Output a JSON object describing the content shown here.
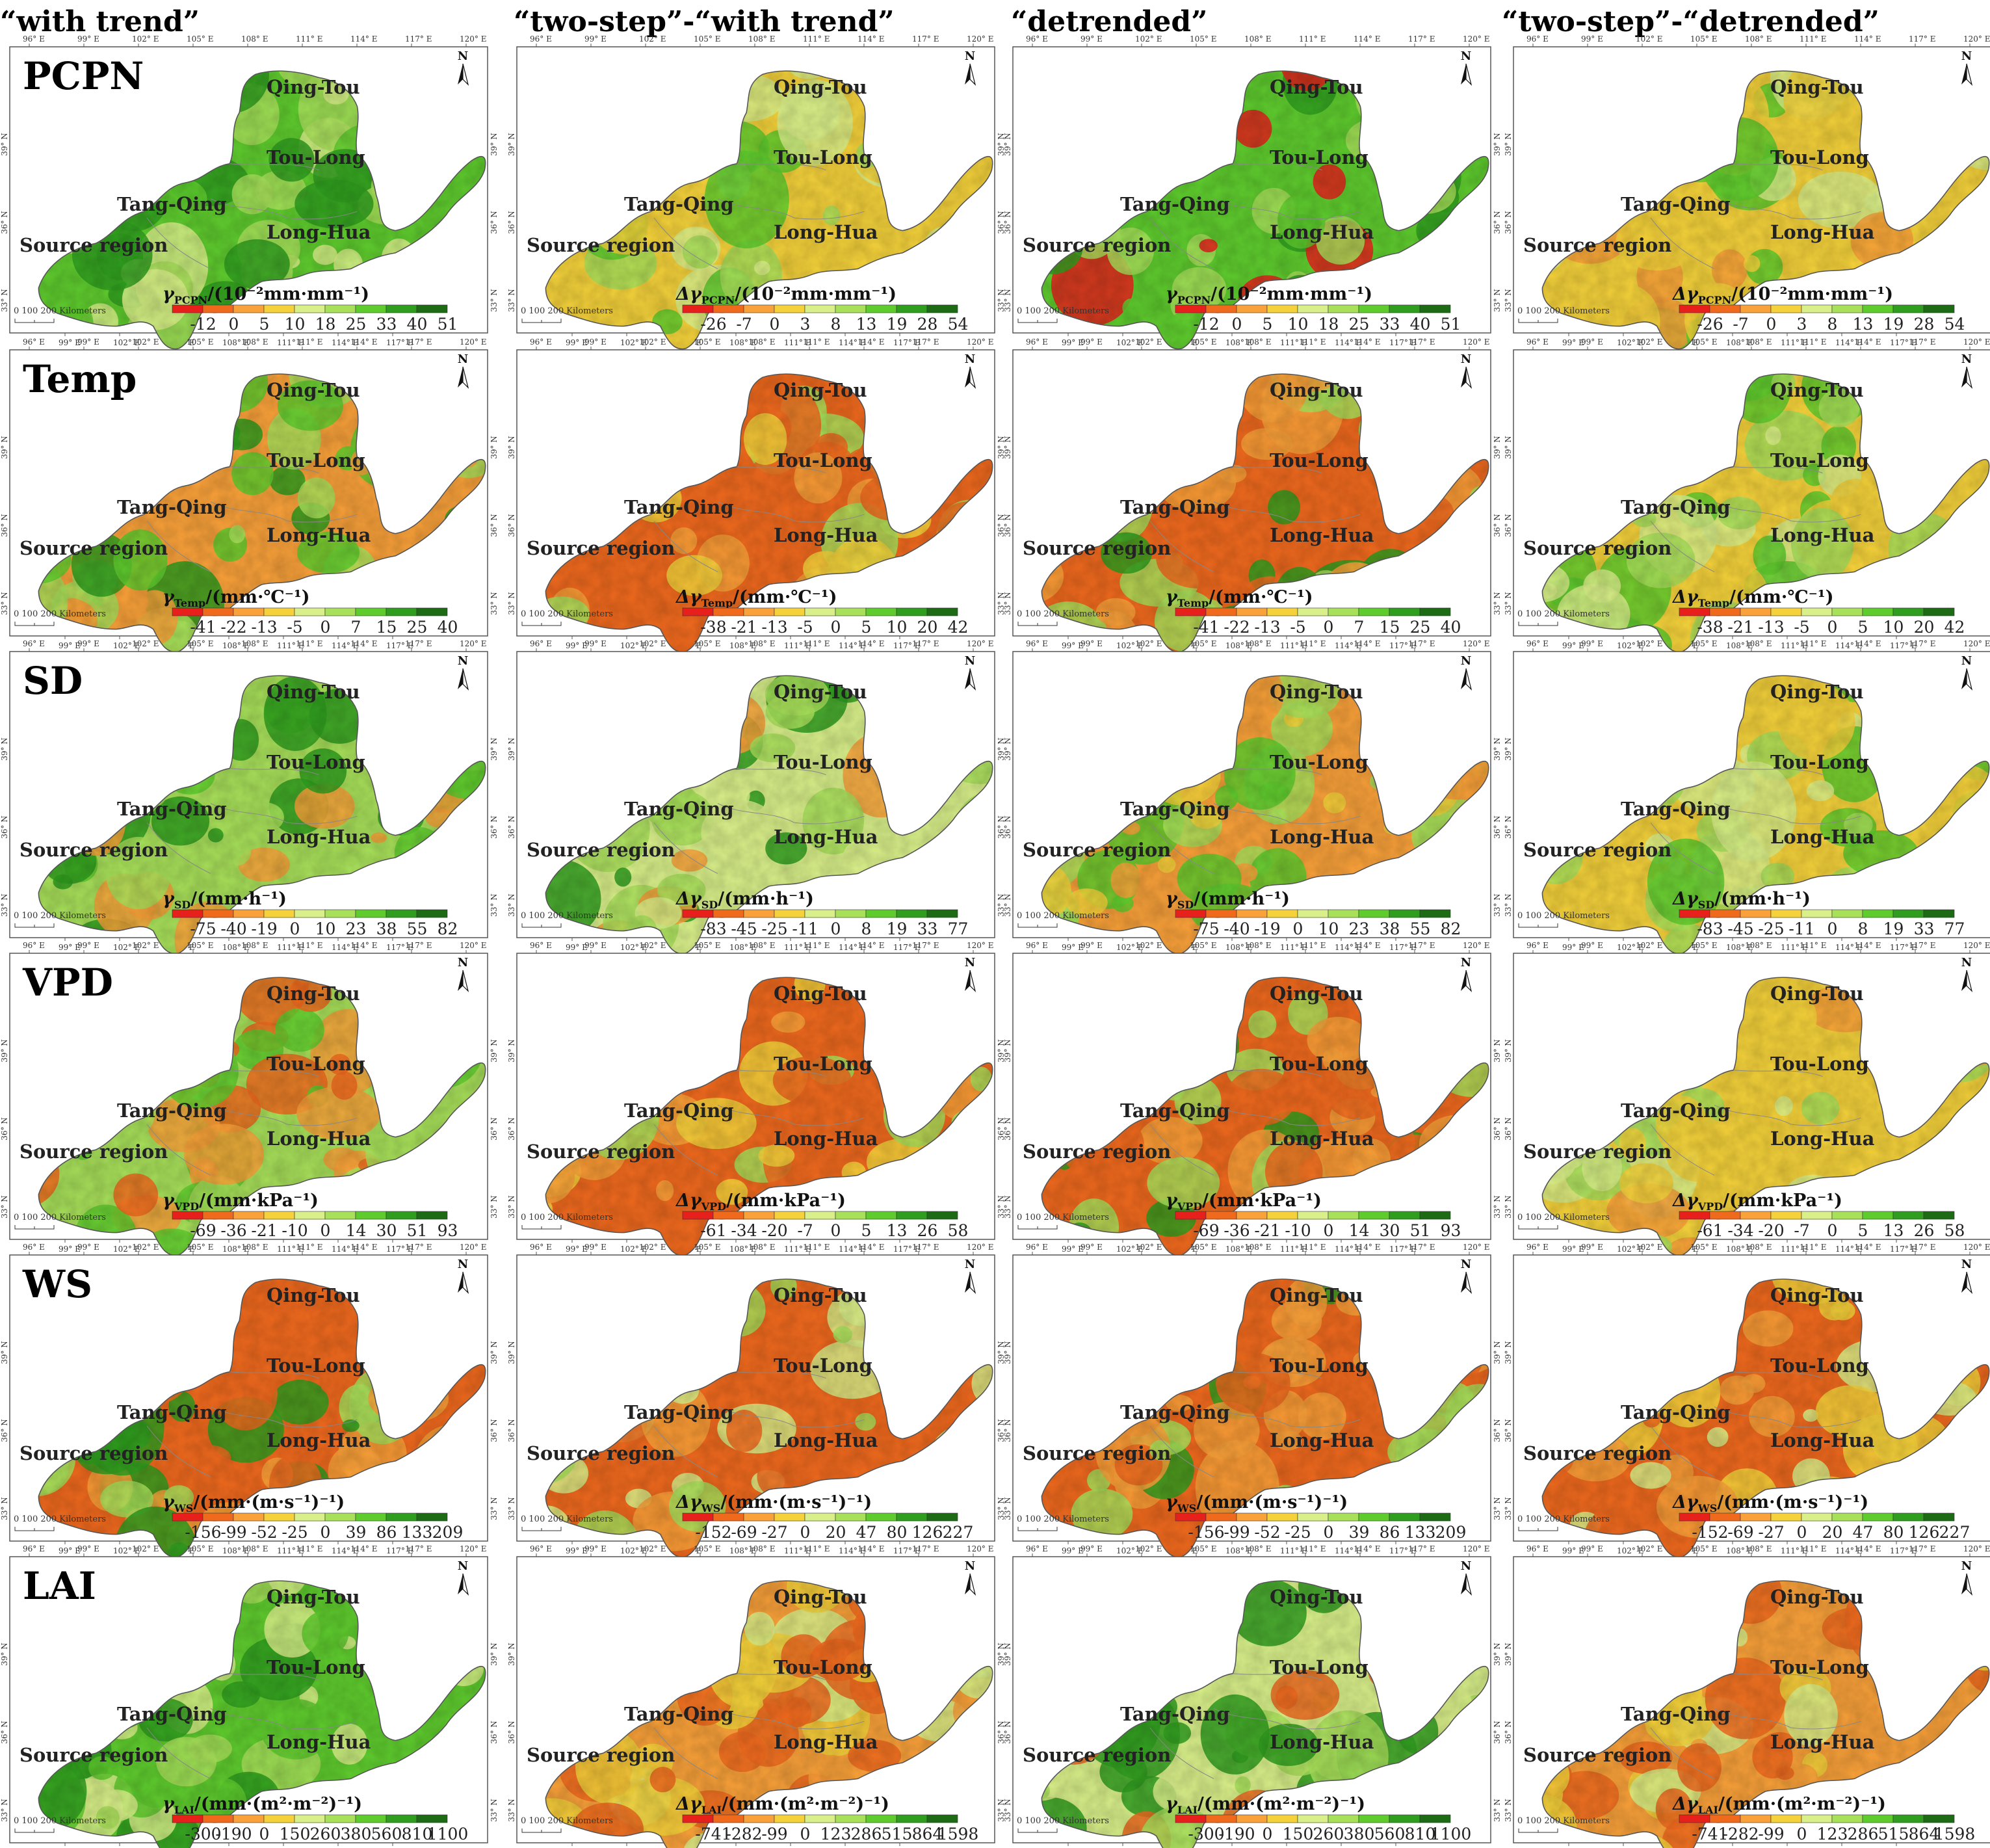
{
  "columns": [
    "“with trend”",
    "“two-step”-“with trend”",
    "“detrended”",
    "“two-step”-“detrended”"
  ],
  "rows": [
    {
      "label": "PCPN",
      "sub": "PCPN",
      "unit": "/(10⁻²mm·mm⁻¹)",
      "ticks_abs": [
        "-12",
        "0",
        "5",
        "10",
        "18",
        "25",
        "33",
        "40",
        "51"
      ],
      "ticks_diff": [
        "-26",
        "-7",
        "0",
        "3",
        "8",
        "13",
        "19",
        "28",
        "54"
      ]
    },
    {
      "label": "Temp",
      "sub": "Temp",
      "unit": "/(mm·℃⁻¹)",
      "ticks_abs": [
        "-41",
        "-22",
        "-13",
        "-5",
        "0",
        "7",
        "15",
        "25",
        "40"
      ],
      "ticks_diff": [
        "-38",
        "-21",
        "-13",
        "-5",
        "0",
        "5",
        "10",
        "20",
        "42"
      ]
    },
    {
      "label": "SD",
      "sub": "SD",
      "unit": "/(mm·h⁻¹)",
      "ticks_abs": [
        "-75",
        "-40",
        "-19",
        "0",
        "10",
        "23",
        "38",
        "55",
        "82"
      ],
      "ticks_diff": [
        "-83",
        "-45",
        "-25",
        "-11",
        "0",
        "8",
        "19",
        "33",
        "77"
      ]
    },
    {
      "label": "VPD",
      "sub": "VPD",
      "unit": "/(mm·kPa⁻¹)",
      "ticks_abs": [
        "-69",
        "-36",
        "-21",
        "-10",
        "0",
        "14",
        "30",
        "51",
        "93"
      ],
      "ticks_diff": [
        "-61",
        "-34",
        "-20",
        "-7",
        "0",
        "5",
        "13",
        "26",
        "58"
      ]
    },
    {
      "label": "WS",
      "sub": "WS",
      "unit": "/(mm·(m·s⁻¹)⁻¹)",
      "ticks_abs": [
        "-156",
        "-99",
        "-52",
        "-25",
        "0",
        "39",
        "86",
        "133",
        "209"
      ],
      "ticks_diff": [
        "-152",
        "-69",
        "-27",
        "0",
        "20",
        "47",
        "80",
        "126",
        "227"
      ]
    },
    {
      "label": "LAI",
      "sub": "LAI",
      "unit": "/(mm·(m²·m⁻²)⁻¹)",
      "ticks_abs": [
        "-300",
        "-190",
        "0",
        "150",
        "260",
        "380",
        "560",
        "810",
        "1100"
      ],
      "ticks_diff": [
        "-741",
        "-282",
        "-99",
        "0",
        "123",
        "286",
        "515",
        "864",
        "1598"
      ]
    }
  ],
  "symbols": {
    "abs": "γ",
    "diff": "Δγ"
  },
  "regions": [
    {
      "name": "Qing-Tou"
    },
    {
      "name": "Tou-Long"
    },
    {
      "name": "Tang-Qing"
    },
    {
      "name": "Long-Hua"
    },
    {
      "name": "Source region"
    }
  ],
  "x_ticks_top": [
    "96° E",
    "99° E",
    "102° E",
    "105° E",
    "108° E",
    "111° E",
    "114° E",
    "117° E",
    "120° E"
  ],
  "x_ticks_bottom": [
    "99° E",
    "102° E",
    "105° E",
    "108° E",
    "111° E",
    "114° E",
    "117° E"
  ],
  "y_ticks": [
    "33° N",
    "36° N",
    "39° N"
  ],
  "scale_label": "0   100  200 Kilometers",
  "north_label": "N",
  "colorbar_colors": [
    "#e8201c",
    "#f06a1e",
    "#f9a13a",
    "#f5d23b",
    "#d9f08a",
    "#a8e05a",
    "#5fcc2e",
    "#2f9e1e",
    "#1d6b15"
  ]
}
